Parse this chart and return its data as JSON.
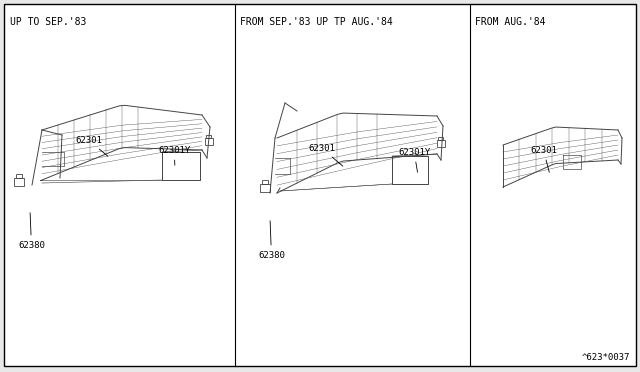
{
  "background_color": "#e8e8e8",
  "border_color": "#000000",
  "panel_bg": "#ffffff",
  "panel_titles": [
    "UP TO SEP.'83",
    "FROM SEP.'83 UP TP AUG.'84",
    "FROM AUG.'84"
  ],
  "footer_text": "^623*0037",
  "text_color": "#000000",
  "line_color": "#444444",
  "title_fontsize": 7.0,
  "label_fontsize": 6.5,
  "footer_fontsize": 6.5
}
